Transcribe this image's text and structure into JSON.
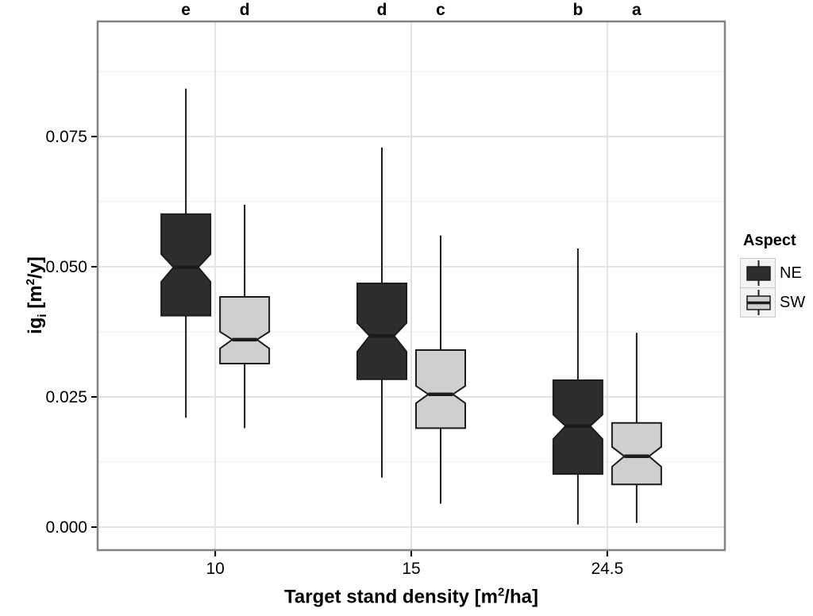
{
  "figure": {
    "bg": "#ffffff"
  },
  "chart_data": {
    "type": "boxplot",
    "title": "",
    "xlabel_parts": {
      "pre": "Target stand density [m",
      "sup": "2",
      "post": "/ha]"
    },
    "ylabel_parts": {
      "pre": "ig",
      "sub": "i",
      "mid": " [m",
      "sup": "2",
      "post": "/y]"
    },
    "x_categories": [
      "10",
      "15",
      "24.5"
    ],
    "y_ticks": [
      {
        "value": 0.0,
        "label": "0.000"
      },
      {
        "value": 0.025,
        "label": "0.025"
      },
      {
        "value": 0.05,
        "label": "0.050"
      },
      {
        "value": 0.075,
        "label": "0.075"
      }
    ],
    "y_minor_values": [
      0.0125,
      0.0375,
      0.0625,
      0.0875
    ],
    "ylim": [
      -0.00442,
      0.0971
    ],
    "grid": {
      "major_color": "#e3e3e3",
      "minor_color": "#f1f1f1",
      "show": true
    },
    "panel_border_color": "#828282",
    "significance_letters": [
      [
        "e",
        "d"
      ],
      [
        "d",
        "c"
      ],
      [
        "b",
        "a"
      ]
    ],
    "legend": {
      "title": "Aspect",
      "position": "right",
      "entries": [
        {
          "label": "NE",
          "fill": "#2d2d2d"
        },
        {
          "label": "SW",
          "fill": "#cfcfcf"
        }
      ]
    },
    "series": [
      {
        "name": "NE",
        "fill": "#2d2d2d",
        "stroke": "#1c1c1c",
        "boxes": [
          {
            "category": "10",
            "whisker_low": 0.021,
            "q1": 0.0406,
            "median": 0.0499,
            "q3": 0.0601,
            "whisker_high": 0.0842,
            "notch_low": 0.0471,
            "notch_high": 0.0524
          },
          {
            "category": "15",
            "whisker_low": 0.0095,
            "q1": 0.0284,
            "median": 0.0367,
            "q3": 0.0468,
            "whisker_high": 0.0729,
            "notch_low": 0.0337,
            "notch_high": 0.0392
          },
          {
            "category": "24.5",
            "whisker_low": 0.0005,
            "q1": 0.0102,
            "median": 0.0194,
            "q3": 0.0282,
            "whisker_high": 0.0535,
            "notch_low": 0.0169,
            "notch_high": 0.0216
          }
        ]
      },
      {
        "name": "SW",
        "fill": "#cfcfcf",
        "stroke": "#1c1c1c",
        "boxes": [
          {
            "category": "10",
            "whisker_low": 0.019,
            "q1": 0.0314,
            "median": 0.036,
            "q3": 0.0442,
            "whisker_high": 0.0619,
            "notch_low": 0.0343,
            "notch_high": 0.0375
          },
          {
            "category": "15",
            "whisker_low": 0.0045,
            "q1": 0.019,
            "median": 0.0255,
            "q3": 0.034,
            "whisker_high": 0.056,
            "notch_low": 0.0238,
            "notch_high": 0.0271
          },
          {
            "category": "24.5",
            "whisker_low": 0.0008,
            "q1": 0.0082,
            "median": 0.0136,
            "q3": 0.02,
            "whisker_high": 0.0373,
            "notch_low": 0.0116,
            "notch_high": 0.0154
          }
        ]
      }
    ]
  }
}
